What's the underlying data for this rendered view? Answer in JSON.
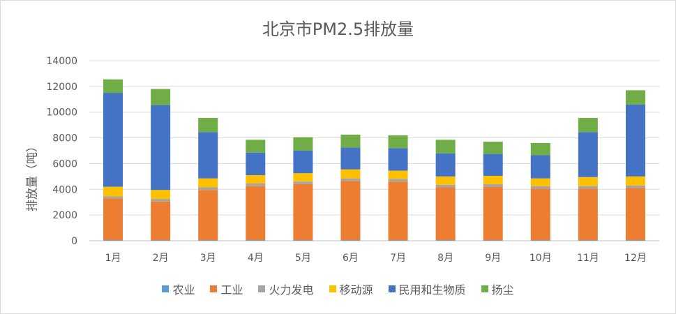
{
  "chart_data": {
    "type": "bar",
    "stacked": true,
    "title": "北京市PM2.5排放量",
    "xlabel": "",
    "ylabel": "排放量（吨）",
    "ylim": [
      0,
      14000
    ],
    "yticks": [
      0,
      2000,
      4000,
      6000,
      8000,
      10000,
      12000,
      14000
    ],
    "grid": true,
    "legend_position": "bottom",
    "categories": [
      "1月",
      "2月",
      "3月",
      "4月",
      "5月",
      "6月",
      "7月",
      "8月",
      "9月",
      "10月",
      "11月",
      "12月"
    ],
    "series": [
      {
        "name": "农业",
        "color": "#5b9bd5",
        "values": [
          50,
          50,
          50,
          50,
          50,
          50,
          50,
          50,
          50,
          50,
          50,
          50
        ]
      },
      {
        "name": "工业",
        "color": "#ed7d31",
        "values": [
          3250,
          3000,
          3900,
          4200,
          4350,
          4600,
          4550,
          4100,
          4150,
          4000,
          4000,
          4050
        ]
      },
      {
        "name": "火力发电",
        "color": "#a5a5a5",
        "values": [
          150,
          200,
          200,
          200,
          200,
          200,
          200,
          200,
          200,
          200,
          200,
          200
        ]
      },
      {
        "name": "移动源",
        "color": "#ffc000",
        "values": [
          750,
          700,
          700,
          650,
          650,
          700,
          650,
          650,
          650,
          600,
          700,
          700
        ]
      },
      {
        "name": "民用和生物质",
        "color": "#4472c4",
        "values": [
          7300,
          6600,
          3600,
          1750,
          1750,
          1700,
          1750,
          1800,
          1700,
          1800,
          3500,
          5600
        ]
      },
      {
        "name": "扬尘",
        "color": "#70ad47",
        "values": [
          1050,
          1250,
          1100,
          1000,
          1050,
          1000,
          1000,
          1050,
          950,
          950,
          1100,
          1100
        ]
      }
    ]
  }
}
